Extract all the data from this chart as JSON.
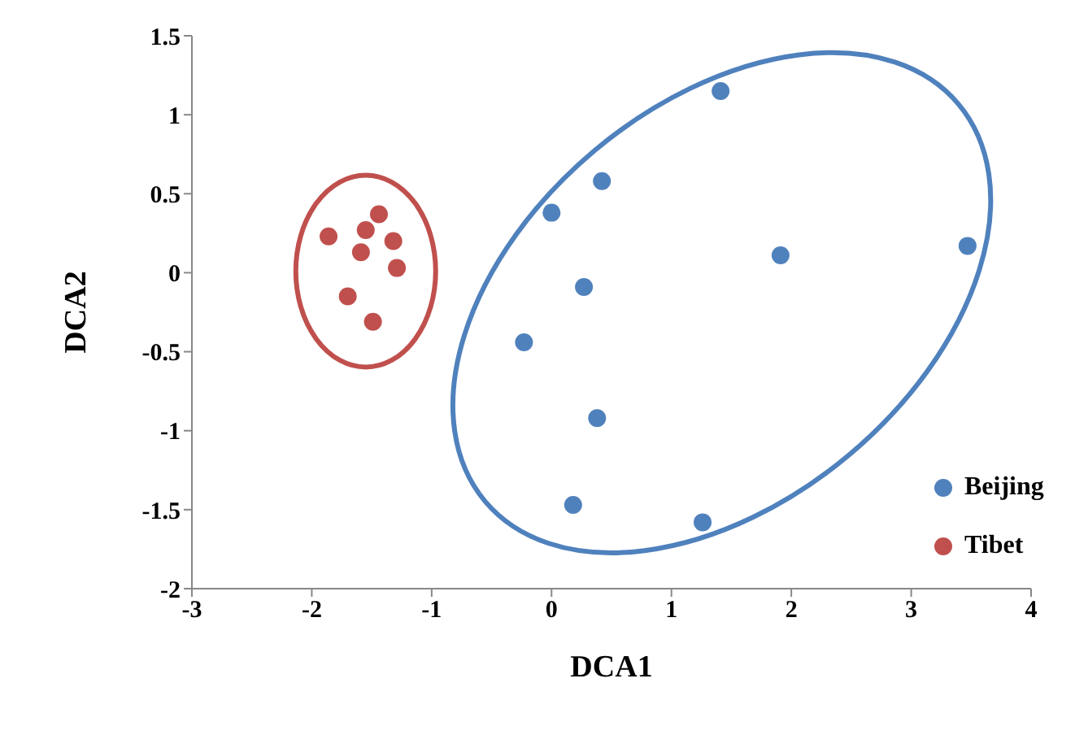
{
  "chart_data": {
    "type": "scatter",
    "xlabel": "DCA1",
    "ylabel": "DCA2",
    "xlim": [
      -3,
      4
    ],
    "xticks": [
      -3,
      -2,
      -1,
      0,
      1,
      2,
      3,
      4
    ],
    "ylim": [
      -2,
      1.5
    ],
    "yticks": [
      -2,
      -1.5,
      -1,
      -0.5,
      0,
      0.5,
      1,
      1.5
    ],
    "grid": false,
    "legend": "bottom right",
    "marker": "circle",
    "series": [
      {
        "name": "Beijing",
        "color": "#4f81bd",
        "x": [
          1.41,
          0.42,
          0.0,
          1.91,
          3.47,
          0.27,
          -0.23,
          0.38,
          0.18,
          1.26
        ],
        "values": [
          1.15,
          0.58,
          0.38,
          0.11,
          0.17,
          -0.09,
          -0.44,
          -0.92,
          -1.47,
          -1.58
        ]
      },
      {
        "name": "Tibet",
        "color": "#c0504d",
        "x": [
          -1.86,
          -1.44,
          -1.55,
          -1.32,
          -1.59,
          -1.29,
          -1.7,
          -1.49
        ],
        "values": [
          0.23,
          0.37,
          0.27,
          0.2,
          0.13,
          0.03,
          -0.15,
          -0.31
        ]
      }
    ]
  }
}
